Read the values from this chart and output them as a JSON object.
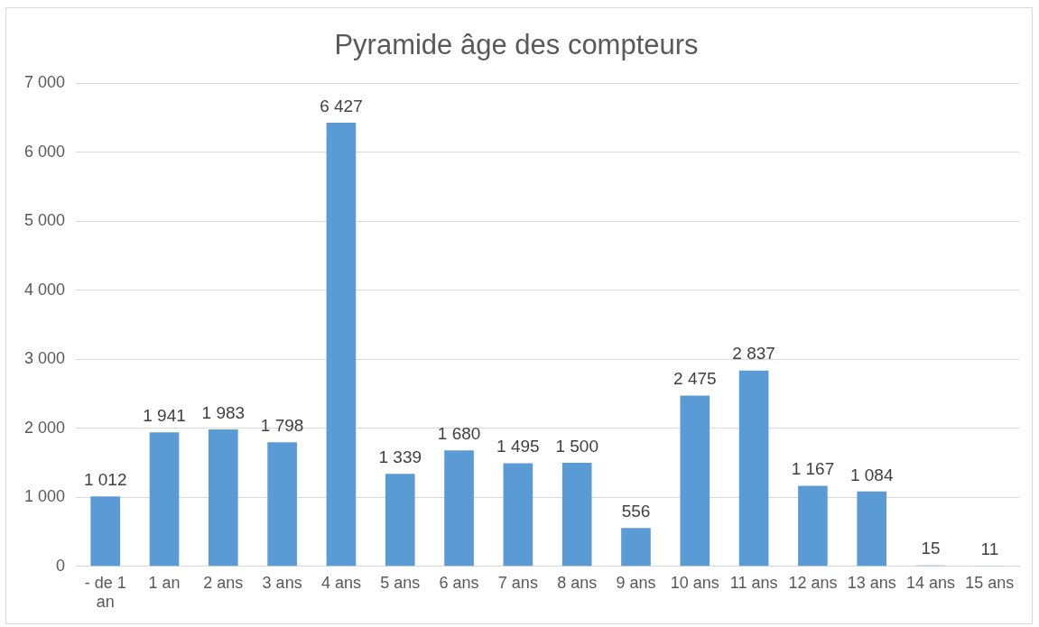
{
  "chart_data": {
    "type": "bar",
    "title": "Pyramide âge des compteurs",
    "categories": [
      "- de 1 an",
      "1 an",
      "2 ans",
      "3 ans",
      "4 ans",
      "5 ans",
      "6 ans",
      "7 ans",
      "8 ans",
      "9 ans",
      "10 ans",
      "11 ans",
      "12 ans",
      "13 ans",
      "14 ans",
      "15 ans"
    ],
    "values": [
      1012,
      1941,
      1983,
      1798,
      6427,
      1339,
      1680,
      1495,
      1500,
      556,
      2475,
      2837,
      1167,
      1084,
      15,
      11
    ],
    "value_labels": [
      "1 012",
      "1 941",
      "1 983",
      "1 798",
      "6 427",
      "1 339",
      "1 680",
      "1 495",
      "1 500",
      "556",
      "2 475",
      "2 837",
      "1 167",
      "1 084",
      "15",
      "11"
    ],
    "color": "#5b9bd5",
    "ylim": [
      0,
      7000
    ],
    "yticks": [
      {
        "value": 0,
        "label": "0"
      },
      {
        "value": 1000,
        "label": "1 000"
      },
      {
        "value": 2000,
        "label": "2 000"
      },
      {
        "value": 3000,
        "label": "3 000"
      },
      {
        "value": 4000,
        "label": "4 000"
      },
      {
        "value": 5000,
        "label": "5 000"
      },
      {
        "value": 6000,
        "label": "6 000"
      },
      {
        "value": 7000,
        "label": "7 000"
      }
    ],
    "grid": "y",
    "legend": false
  }
}
